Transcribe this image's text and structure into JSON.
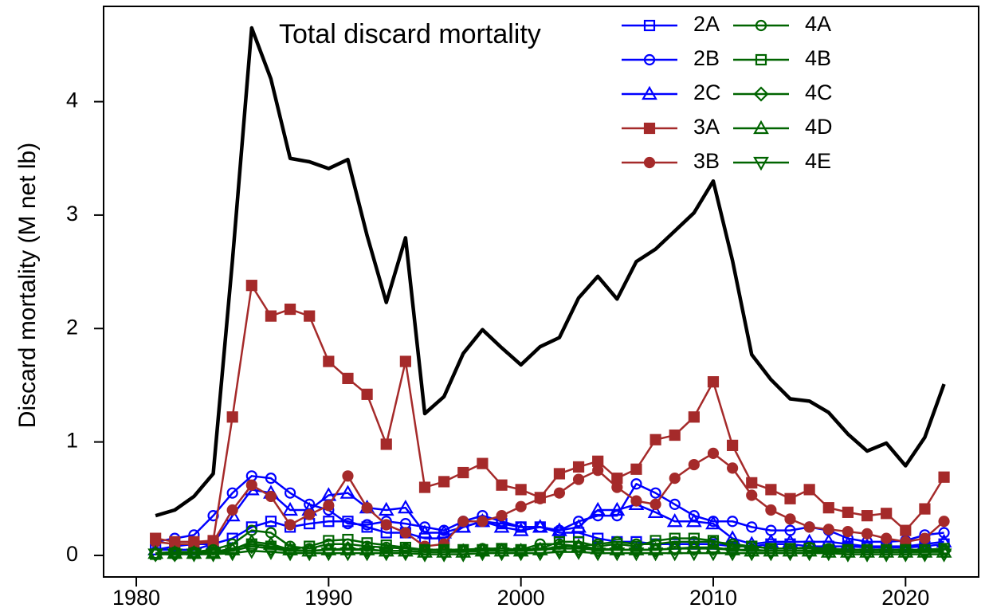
{
  "chart_data": {
    "type": "line",
    "title": "Total discard mortality",
    "y_label": "Discard mortality (M net lb)",
    "xlim": [
      1978.3,
      2023.8
    ],
    "ylim": [
      -0.19,
      4.84
    ],
    "xticks": [
      1980,
      1990,
      2000,
      2010,
      2020
    ],
    "yticks": [
      0,
      1,
      2,
      3,
      4
    ],
    "x": [
      1981,
      1982,
      1983,
      1984,
      1985,
      1986,
      1987,
      1988,
      1989,
      1990,
      1991,
      1992,
      1993,
      1994,
      1995,
      1996,
      1997,
      1998,
      1999,
      2000,
      2001,
      2002,
      2003,
      2004,
      2005,
      2006,
      2007,
      2008,
      2009,
      2010,
      2011,
      2012,
      2013,
      2014,
      2015,
      2016,
      2017,
      2018,
      2019,
      2020,
      2021,
      2022
    ],
    "series": [
      {
        "color": "#000000",
        "values": [
          0.35,
          0.4,
          0.52,
          0.72,
          2.6,
          4.65,
          4.2,
          3.5,
          3.47,
          3.41,
          3.49,
          2.82,
          2.23,
          2.8,
          1.25,
          1.4,
          1.78,
          1.99,
          1.83,
          1.68,
          1.84,
          1.92,
          2.27,
          2.46,
          2.26,
          2.59,
          2.7,
          2.86,
          3.02,
          3.3,
          2.6,
          1.77,
          1.55,
          1.38,
          1.36,
          1.26,
          1.07,
          0.92,
          0.99,
          0.79,
          1.04,
          1.51
        ]
      },
      {
        "name": "2A",
        "color": "#0000ff",
        "marker": "square-open",
        "values": [
          0.05,
          0.08,
          0.1,
          0.1,
          0.15,
          0.25,
          0.3,
          0.25,
          0.28,
          0.3,
          0.3,
          0.25,
          0.2,
          0.2,
          0.15,
          0.15,
          0.25,
          0.3,
          0.28,
          0.25,
          0.25,
          0.2,
          0.2,
          0.15,
          0.12,
          0.12,
          0.1,
          0.1,
          0.1,
          0.1,
          0.08,
          0.08,
          0.1,
          0.1,
          0.08,
          0.08,
          0.08,
          0.07,
          0.07,
          0.07,
          0.08,
          0.1
        ]
      },
      {
        "name": "2B",
        "color": "#0000ff",
        "marker": "circle-open",
        "values": [
          0.12,
          0.15,
          0.18,
          0.35,
          0.55,
          0.7,
          0.68,
          0.55,
          0.45,
          0.4,
          0.28,
          0.27,
          0.3,
          0.28,
          0.25,
          0.22,
          0.3,
          0.35,
          0.3,
          0.25,
          0.25,
          0.22,
          0.3,
          0.35,
          0.35,
          0.63,
          0.55,
          0.45,
          0.35,
          0.3,
          0.3,
          0.25,
          0.22,
          0.22,
          0.25,
          0.22,
          0.15,
          0.12,
          0.12,
          0.13,
          0.18,
          0.2
        ]
      },
      {
        "name": "2C",
        "color": "#0000ff",
        "marker": "triangle-open",
        "values": [
          0.05,
          0.05,
          0.05,
          0.1,
          0.35,
          0.58,
          0.55,
          0.4,
          0.4,
          0.53,
          0.55,
          0.42,
          0.4,
          0.42,
          0.2,
          0.2,
          0.25,
          0.3,
          0.25,
          0.22,
          0.25,
          0.22,
          0.25,
          0.4,
          0.4,
          0.45,
          0.38,
          0.3,
          0.3,
          0.28,
          0.15,
          0.1,
          0.12,
          0.12,
          0.12,
          0.12,
          0.1,
          0.08,
          0.08,
          0.08,
          0.1,
          0.12
        ]
      },
      {
        "name": "3A",
        "color": "#a52a2a",
        "marker": "square",
        "values": [
          0.15,
          0.12,
          0.12,
          0.13,
          1.22,
          2.38,
          2.11,
          2.17,
          2.11,
          1.71,
          1.56,
          1.42,
          0.98,
          1.71,
          0.6,
          0.65,
          0.73,
          0.81,
          0.62,
          0.58,
          0.51,
          0.72,
          0.78,
          0.83,
          0.68,
          0.76,
          1.02,
          1.06,
          1.22,
          1.53,
          0.97,
          0.64,
          0.58,
          0.5,
          0.58,
          0.42,
          0.38,
          0.35,
          0.37,
          0.22,
          0.41,
          0.69
        ]
      },
      {
        "name": "3B",
        "color": "#a52a2a",
        "marker": "circle",
        "values": [
          0.12,
          0.1,
          0.1,
          0.12,
          0.4,
          0.62,
          0.52,
          0.27,
          0.36,
          0.44,
          0.7,
          0.42,
          0.27,
          0.2,
          0.08,
          0.1,
          0.3,
          0.3,
          0.35,
          0.43,
          0.5,
          0.55,
          0.67,
          0.75,
          0.6,
          0.48,
          0.45,
          0.68,
          0.8,
          0.9,
          0.77,
          0.53,
          0.4,
          0.32,
          0.25,
          0.23,
          0.21,
          0.19,
          0.15,
          0.12,
          0.15,
          0.3
        ]
      },
      {
        "name": "4A",
        "color": "#006400",
        "marker": "circle-open",
        "values": [
          0.02,
          0.03,
          0.03,
          0.05,
          0.1,
          0.22,
          0.2,
          0.08,
          0.06,
          0.1,
          0.1,
          0.08,
          0.07,
          0.06,
          0.05,
          0.05,
          0.05,
          0.06,
          0.06,
          0.05,
          0.1,
          0.1,
          0.08,
          0.1,
          0.12,
          0.1,
          0.1,
          0.12,
          0.12,
          0.12,
          0.1,
          0.08,
          0.06,
          0.06,
          0.07,
          0.06,
          0.05,
          0.05,
          0.05,
          0.05,
          0.04,
          0.05
        ]
      },
      {
        "name": "4B",
        "color": "#006400",
        "marker": "square-open",
        "values": [
          0.01,
          0.02,
          0.02,
          0.03,
          0.06,
          0.1,
          0.08,
          0.05,
          0.08,
          0.13,
          0.14,
          0.11,
          0.09,
          0.07,
          0.05,
          0.05,
          0.05,
          0.05,
          0.06,
          0.05,
          0.06,
          0.12,
          0.12,
          0.08,
          0.1,
          0.08,
          0.13,
          0.15,
          0.15,
          0.13,
          0.08,
          0.08,
          0.06,
          0.06,
          0.06,
          0.05,
          0.05,
          0.05,
          0.05,
          0.05,
          0.05,
          0.06
        ]
      },
      {
        "name": "4C",
        "color": "#006400",
        "marker": "diamond-open",
        "values": [
          0.01,
          0.01,
          0.02,
          0.02,
          0.04,
          0.08,
          0.06,
          0.04,
          0.04,
          0.05,
          0.06,
          0.05,
          0.04,
          0.04,
          0.03,
          0.03,
          0.04,
          0.04,
          0.04,
          0.04,
          0.05,
          0.06,
          0.06,
          0.05,
          0.05,
          0.05,
          0.05,
          0.06,
          0.06,
          0.06,
          0.05,
          0.05,
          0.04,
          0.04,
          0.04,
          0.04,
          0.03,
          0.03,
          0.03,
          0.03,
          0.03,
          0.04
        ]
      },
      {
        "name": "4D",
        "color": "#006400",
        "marker": "triangle-open",
        "values": [
          0.02,
          0.02,
          0.02,
          0.02,
          0.05,
          0.12,
          0.1,
          0.05,
          0.04,
          0.05,
          0.05,
          0.05,
          0.04,
          0.04,
          0.03,
          0.03,
          0.03,
          0.04,
          0.04,
          0.04,
          0.05,
          0.08,
          0.08,
          0.06,
          0.05,
          0.05,
          0.05,
          0.06,
          0.07,
          0.07,
          0.05,
          0.04,
          0.04,
          0.04,
          0.04,
          0.03,
          0.03,
          0.03,
          0.03,
          0.03,
          0.03,
          0.03
        ]
      },
      {
        "name": "4E",
        "color": "#006400",
        "marker": "triangle-down-open",
        "values": [
          0.01,
          0.01,
          0.01,
          0.01,
          0.02,
          0.04,
          0.03,
          0.02,
          0.02,
          0.02,
          0.02,
          0.02,
          0.02,
          0.02,
          0.01,
          0.01,
          0.01,
          0.02,
          0.02,
          0.02,
          0.02,
          0.03,
          0.03,
          0.02,
          0.02,
          0.02,
          0.02,
          0.02,
          0.02,
          0.02,
          0.02,
          0.02,
          0.02,
          0.02,
          0.02,
          0.02,
          0.01,
          0.01,
          0.01,
          0.01,
          0.01,
          0.01
        ]
      }
    ]
  }
}
